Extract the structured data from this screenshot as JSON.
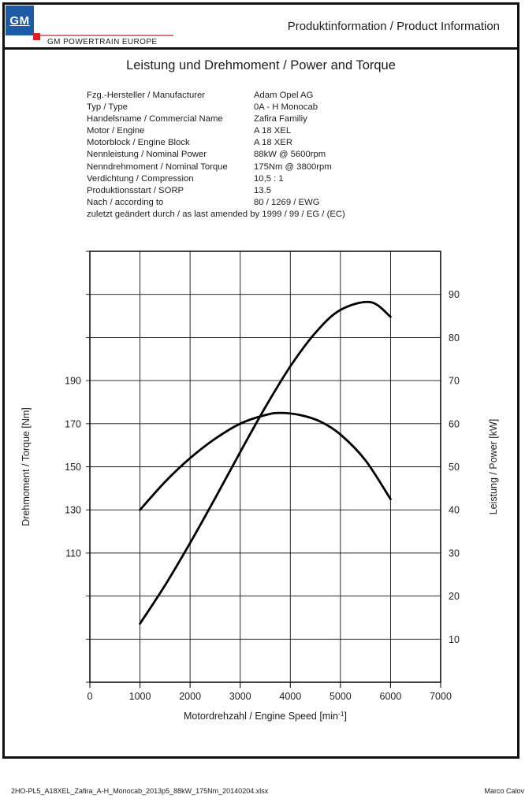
{
  "header": {
    "logo_text": "GM",
    "brand": "GM POWERTRAIN EUROPE",
    "doc_title": "Produktinformation / Product Information"
  },
  "title": "Leistung und Drehmoment / Power and Torque",
  "specs": {
    "rows": [
      {
        "label": "Fzg.-Hersteller / Manufacturer",
        "value": "Adam Opel AG"
      },
      {
        "label": "Typ / Type",
        "value": "0A - H Monocab"
      },
      {
        "label": "Handelsname / Commercial Name",
        "value": "Zafira Familiy"
      },
      {
        "label": "Motor / Engine",
        "value": "A 18 XEL"
      },
      {
        "label": "Motorblock / Engine Block",
        "value": "A 18 XER"
      },
      {
        "label": "Nennleistung / Nominal Power",
        "value": "88kW @ 5600rpm"
      },
      {
        "label": "Nenndrehmoment / Nominal Torque",
        "value": "175Nm @ 3800rpm"
      },
      {
        "label": "Verdichtung / Compression",
        "value": "10,5 : 1"
      },
      {
        "label": "Produktionsstart / SORP",
        "value": "13.5"
      },
      {
        "label": "Nach / according to",
        "value": "80 / 1269 / EWG"
      }
    ],
    "footnote": "zuletzt geändert durch / as last amended by 1999 / 99 / EG / (EC)"
  },
  "chart_data": {
    "type": "line",
    "xlabel_prefix": "Motordrehzahl / Engine Speed [min",
    "xlabel_sup": "-1",
    "xlabel_suffix": "]",
    "ylabel_left": "Drehmoment / Torque [Nm]",
    "ylabel_right": "Leistung / Power [kW]",
    "xlim": [
      0,
      7000
    ],
    "x_ticks": [
      0,
      1000,
      2000,
      3000,
      4000,
      5000,
      6000,
      7000
    ],
    "left_axis": {
      "label_ticks": [
        190,
        170,
        150,
        130,
        110
      ],
      "lim": [
        50,
        250
      ],
      "grid_step": 20
    },
    "right_axis": {
      "label_ticks": [
        90,
        80,
        70,
        60,
        50,
        40,
        30,
        20,
        10
      ],
      "lim": [
        0,
        100
      ],
      "grid_step": 10
    },
    "grid": true,
    "line_color": "#000000",
    "series": [
      {
        "name": "Drehmoment / Torque [Nm]",
        "axis": "left",
        "points": [
          [
            1000,
            130
          ],
          [
            1500,
            143
          ],
          [
            2000,
            154
          ],
          [
            2500,
            163
          ],
          [
            3000,
            170
          ],
          [
            3500,
            174
          ],
          [
            3800,
            175
          ],
          [
            4200,
            174
          ],
          [
            4600,
            171
          ],
          [
            5000,
            165
          ],
          [
            5500,
            153
          ],
          [
            6000,
            135
          ]
        ]
      },
      {
        "name": "Leistung / Power [kW]",
        "axis": "right",
        "points": [
          [
            1000,
            13.6
          ],
          [
            1500,
            22.5
          ],
          [
            2000,
            32.3
          ],
          [
            2500,
            42.7
          ],
          [
            3000,
            53.4
          ],
          [
            3500,
            63.8
          ],
          [
            4000,
            73.3
          ],
          [
            4500,
            81.1
          ],
          [
            5000,
            86.4
          ],
          [
            5600,
            88.2
          ],
          [
            6000,
            84.8
          ]
        ]
      }
    ]
  },
  "footer": {
    "filename": "2HO-PL5_A18XEL_Zafira_A-H_Monocab_2013p5_88kW_175Nm_20140204.xlsx",
    "author": "Marco Calov"
  },
  "colors": {
    "gm_blue": "#1f5aa6",
    "red": "#e01f26",
    "red_line": "#cf7a80",
    "ink": "#101010"
  }
}
